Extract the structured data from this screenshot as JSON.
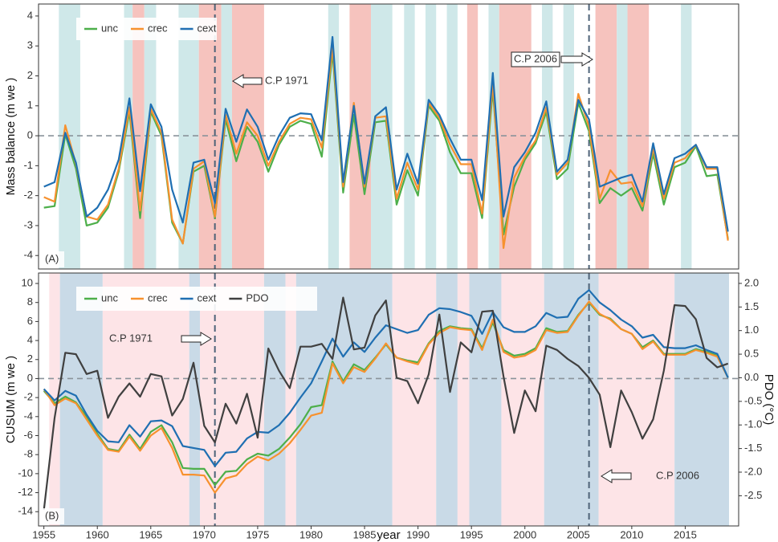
{
  "chart_data": [
    {
      "type": "line",
      "ylabel": "Mass balance (m we )",
      "panel_label": "(A)",
      "legend": "top-left",
      "x": [
        1955,
        1956,
        1957,
        1958,
        1959,
        1960,
        1961,
        1962,
        1963,
        1964,
        1965,
        1966,
        1967,
        1968,
        1969,
        1970,
        1971,
        1972,
        1973,
        1974,
        1975,
        1976,
        1977,
        1978,
        1979,
        1980,
        1981,
        1982,
        1983,
        1984,
        1985,
        1986,
        1987,
        1988,
        1989,
        1990,
        1991,
        1992,
        1993,
        1994,
        1995,
        1996,
        1997,
        1998,
        1999,
        2000,
        2001,
        2002,
        2003,
        2004,
        2005,
        2006,
        2007,
        2008,
        2009,
        2010,
        2011,
        2012,
        2013,
        2014,
        2015,
        2016,
        2017,
        2018,
        2019
      ],
      "xlim": [
        1954.5,
        2020
      ],
      "ylim": [
        -4.45,
        4.4
      ],
      "yticks": [
        -4,
        -3,
        -2,
        -1,
        0,
        1,
        2,
        3,
        4
      ],
      "hline": 0,
      "change_points": [
        1971,
        2006
      ],
      "annotations": [
        "C.P 1971",
        "C.P 2006"
      ],
      "periods": [
        {
          "start": 1956.4,
          "end": 1958.4,
          "color": "#cfe8e9"
        },
        {
          "start": 1962.5,
          "end": 1963.3,
          "color": "#cfe8e9"
        },
        {
          "start": 1963.3,
          "end": 1964.4,
          "color": "#f6c3be"
        },
        {
          "start": 1964.4,
          "end": 1965.5,
          "color": "#cfe8e9"
        },
        {
          "start": 1967.6,
          "end": 1969.5,
          "color": "#cfe8e9"
        },
        {
          "start": 1969.5,
          "end": 1971.6,
          "color": "#f6c3be"
        },
        {
          "start": 1971.6,
          "end": 1972.6,
          "color": "#cfe8e9"
        },
        {
          "start": 1972.6,
          "end": 1975.6,
          "color": "#f6c3be"
        },
        {
          "start": 1981.6,
          "end": 1982.6,
          "color": "#cfe8e9"
        },
        {
          "start": 1983.6,
          "end": 1985.6,
          "color": "#f6c3be"
        },
        {
          "start": 1985.6,
          "end": 1987.6,
          "color": "#cfe8e9"
        },
        {
          "start": 1988.7,
          "end": 1989.7,
          "color": "#cfe8e9"
        },
        {
          "start": 1990.7,
          "end": 1991.7,
          "color": "#cfe8e9"
        },
        {
          "start": 1992.7,
          "end": 1993.7,
          "color": "#cfe8e9"
        },
        {
          "start": 1994.6,
          "end": 1995.6,
          "color": "#f6c3be"
        },
        {
          "start": 1996.6,
          "end": 1997.6,
          "color": "#cfe8e9"
        },
        {
          "start": 1997.6,
          "end": 2000.6,
          "color": "#f6c3be"
        },
        {
          "start": 2001.6,
          "end": 2002.6,
          "color": "#cfe8e9"
        },
        {
          "start": 2003.6,
          "end": 2004.6,
          "color": "#cfe8e9"
        },
        {
          "start": 2006.6,
          "end": 2008.6,
          "color": "#f6c3be"
        },
        {
          "start": 2008.6,
          "end": 2009.6,
          "color": "#cfe8e9"
        },
        {
          "start": 2009.6,
          "end": 2011.6,
          "color": "#f6c3be"
        },
        {
          "start": 2014.6,
          "end": 2015.6,
          "color": "#cfe8e9"
        }
      ],
      "series": [
        {
          "name": "unc",
          "color": "#4daf4a",
          "values": [
            -2.4,
            -2.35,
            0.05,
            -1.1,
            -3.0,
            -2.9,
            -2.4,
            -1.2,
            0.8,
            -2.75,
            0.8,
            0.0,
            -2.9,
            -3.6,
            -1.2,
            -1.0,
            -2.75,
            0.55,
            -0.85,
            0.3,
            -0.2,
            -1.2,
            -0.3,
            0.3,
            0.5,
            0.4,
            -0.7,
            2.8,
            -1.9,
            0.7,
            -1.95,
            0.45,
            0.5,
            -2.3,
            -1.15,
            -2.0,
            1.0,
            0.5,
            -0.55,
            -1.25,
            -1.25,
            -2.75,
            1.55,
            -3.3,
            -1.7,
            -0.8,
            -0.25,
            0.8,
            -1.45,
            -1.1,
            1.1,
            0.15,
            -2.25,
            -1.75,
            -2.0,
            -1.75,
            -2.5,
            -0.6,
            -2.3,
            -1.05,
            -0.9,
            -0.35,
            -1.35,
            -1.3,
            -3.45
          ]
        },
        {
          "name": "crec",
          "color": "#f7912e",
          "values": [
            -2.05,
            -2.2,
            0.35,
            -0.95,
            -2.7,
            -2.8,
            -2.3,
            -1.1,
            0.95,
            -2.5,
            0.9,
            0.1,
            -2.8,
            -3.6,
            -1.1,
            -0.85,
            -2.7,
            0.7,
            -0.6,
            0.45,
            0.0,
            -1.0,
            -0.2,
            0.4,
            0.6,
            0.55,
            -0.4,
            3.0,
            -1.7,
            1.1,
            -1.7,
            0.6,
            0.65,
            -2.1,
            -0.9,
            -1.8,
            1.1,
            0.6,
            -0.3,
            -0.95,
            -0.95,
            -2.6,
            1.8,
            -3.75,
            -1.4,
            -0.7,
            -0.15,
            0.95,
            -1.3,
            -0.9,
            1.4,
            0.3,
            -2.1,
            -1.15,
            -1.6,
            -1.55,
            -2.35,
            -0.4,
            -2.1,
            -0.9,
            -0.75,
            -0.3,
            -1.1,
            -1.1,
            -3.5
          ]
        },
        {
          "name": "cext",
          "color": "#1f6fb2",
          "values": [
            -1.7,
            -1.55,
            0.1,
            -0.9,
            -2.7,
            -2.4,
            -1.8,
            -0.8,
            1.25,
            -1.85,
            1.05,
            0.3,
            -1.8,
            -2.9,
            -0.9,
            -0.8,
            -2.25,
            0.9,
            -0.2,
            0.88,
            0.3,
            -0.8,
            0.0,
            0.6,
            0.75,
            0.72,
            -0.15,
            3.3,
            -1.55,
            1.0,
            -1.6,
            0.65,
            0.95,
            -1.8,
            -0.6,
            -1.6,
            1.2,
            0.7,
            -0.1,
            -0.8,
            -0.8,
            -2.15,
            2.1,
            -2.7,
            -1.05,
            -0.55,
            0.1,
            1.15,
            -1.2,
            -0.8,
            1.2,
            0.55,
            -1.7,
            -1.55,
            -1.4,
            -1.3,
            -2.2,
            -0.25,
            -1.95,
            -0.75,
            -0.6,
            -0.3,
            -1.05,
            -1.05,
            -3.2
          ]
        }
      ]
    },
    {
      "type": "line",
      "ylabel": "CUSUM (m we )",
      "y2label": "PDO (°C)",
      "xlabel": "year",
      "panel_label": "(B)",
      "legend": "top-left",
      "x": [
        1955,
        1956,
        1957,
        1958,
        1959,
        1960,
        1961,
        1962,
        1963,
        1964,
        1965,
        1966,
        1967,
        1968,
        1969,
        1970,
        1971,
        1972,
        1973,
        1974,
        1975,
        1976,
        1977,
        1978,
        1979,
        1980,
        1981,
        1982,
        1983,
        1984,
        1985,
        1986,
        1987,
        1988,
        1989,
        1990,
        1991,
        1992,
        1993,
        1994,
        1995,
        1996,
        1997,
        1998,
        1999,
        2000,
        2001,
        2002,
        2003,
        2004,
        2005,
        2006,
        2007,
        2008,
        2009,
        2010,
        2011,
        2012,
        2013,
        2014,
        2015,
        2016,
        2017,
        2018,
        2019
      ],
      "xlim": [
        1954.5,
        2020
      ],
      "xticks": [
        1955,
        1960,
        1965,
        1970,
        1975,
        1980,
        1985,
        1990,
        1995,
        2000,
        2005,
        2010,
        2015
      ],
      "ylim": [
        -15.5,
        11.1
      ],
      "yticks": [
        -14,
        -12,
        -10,
        -8,
        -6,
        -4,
        -2,
        0,
        2,
        4,
        6,
        8,
        10
      ],
      "y2lim": [
        -3.14,
        2.22
      ],
      "y2ticks": [
        {
          "value": 2,
          "label": "2.0"
        },
        1.5,
        {
          "value": 1,
          "label": "1.0"
        },
        0.5,
        {
          "value": 0,
          "label": "0.0"
        },
        -0.5,
        {
          "value": -1,
          "label": "-1.0"
        },
        -1.5,
        {
          "value": -2,
          "label": "-2.0"
        },
        -2.5
      ],
      "hline": 0,
      "change_points": [
        1971,
        2006
      ],
      "annotations": [
        "C.P 1971",
        "C.P 2006"
      ],
      "periods": [
        {
          "start": 1955.5,
          "end": 1956.5,
          "color": "#fde4e7"
        },
        {
          "start": 1956.5,
          "end": 1960.5,
          "color": "#c9dae7"
        },
        {
          "start": 1960.5,
          "end": 1968.6,
          "color": "#fde4e7"
        },
        {
          "start": 1968.6,
          "end": 1969.6,
          "color": "#c9dae7"
        },
        {
          "start": 1969.6,
          "end": 1975.6,
          "color": "#fde4e7"
        },
        {
          "start": 1975.6,
          "end": 1977.6,
          "color": "#c9dae7"
        },
        {
          "start": 1977.6,
          "end": 1978.6,
          "color": "#fde4e7"
        },
        {
          "start": 1978.6,
          "end": 1987.6,
          "color": "#c9dae7"
        },
        {
          "start": 1987.6,
          "end": 1991.7,
          "color": "#fde4e7"
        },
        {
          "start": 1991.7,
          "end": 1993.7,
          "color": "#c9dae7"
        },
        {
          "start": 1993.7,
          "end": 1994.8,
          "color": "#fde4e7"
        },
        {
          "start": 1994.8,
          "end": 1997.8,
          "color": "#c9dae7"
        },
        {
          "start": 1997.8,
          "end": 2001.8,
          "color": "#fde4e7"
        },
        {
          "start": 2001.8,
          "end": 2006.9,
          "color": "#c9dae7"
        },
        {
          "start": 2006.9,
          "end": 2014.0,
          "color": "#fde4e7"
        },
        {
          "start": 2014.0,
          "end": 2019.1,
          "color": "#c9dae7"
        }
      ],
      "series": [
        {
          "name": "unc",
          "color": "#4daf4a",
          "values": [
            -1.3,
            -2.6,
            -1.9,
            -2.5,
            -4.0,
            -5.8,
            -7.4,
            -7.6,
            -5.9,
            -7.4,
            -5.6,
            -4.9,
            -6.7,
            -9.4,
            -9.5,
            -9.5,
            -11.2,
            -9.8,
            -9.7,
            -8.5,
            -7.9,
            -8.1,
            -7.4,
            -6.2,
            -4.8,
            -3.0,
            -2.8,
            1.8,
            -0.3,
            1.5,
            0.9,
            2.2,
            3.6,
            2.2,
            1.9,
            1.7,
            3.7,
            5.0,
            5.5,
            5.3,
            5.2,
            3.2,
            5.9,
            3.0,
            2.4,
            2.6,
            3.2,
            5.3,
            4.9,
            5.0,
            6.7,
            8.0,
            6.7,
            6.3,
            5.2,
            4.7,
            3.3,
            4.0,
            2.6,
            2.6,
            2.6,
            3.1,
            2.8,
            2.4,
            0.1
          ]
        },
        {
          "name": "crec",
          "color": "#f7912e",
          "values": [
            -1.1,
            -2.8,
            -2.1,
            -2.6,
            -4.3,
            -6.0,
            -7.5,
            -7.7,
            -6.1,
            -7.6,
            -6.0,
            -5.2,
            -7.3,
            -10.1,
            -10.1,
            -10.2,
            -12.0,
            -10.5,
            -10.2,
            -9.0,
            -8.2,
            -8.6,
            -7.9,
            -6.8,
            -5.4,
            -3.9,
            -3.6,
            1.6,
            -0.5,
            1.2,
            0.7,
            2.1,
            3.7,
            2.2,
            1.8,
            1.5,
            3.6,
            4.8,
            5.4,
            5.2,
            5.1,
            3.0,
            6.2,
            2.8,
            2.2,
            2.4,
            3.0,
            5.1,
            4.8,
            4.9,
            6.6,
            8.1,
            6.8,
            6.2,
            5.2,
            4.7,
            3.1,
            3.9,
            2.5,
            2.5,
            2.5,
            3.0,
            2.7,
            2.3,
            0.1
          ]
        },
        {
          "name": "cext",
          "color": "#1f6fb2",
          "values": [
            -1.1,
            -2.3,
            -1.3,
            -1.8,
            -3.8,
            -5.5,
            -6.6,
            -6.7,
            -4.9,
            -6.1,
            -4.5,
            -4.4,
            -5.0,
            -7.1,
            -7.3,
            -7.5,
            -9.2,
            -7.8,
            -7.7,
            -6.3,
            -5.6,
            -5.7,
            -4.9,
            -3.6,
            -2.0,
            -0.5,
            1.8,
            4.2,
            2.3,
            3.8,
            2.8,
            4.3,
            5.6,
            5.2,
            4.8,
            5.1,
            6.7,
            7.4,
            7.3,
            7.0,
            6.6,
            4.7,
            7.0,
            5.4,
            4.9,
            4.9,
            5.5,
            6.9,
            6.4,
            6.5,
            8.4,
            9.3,
            8.0,
            7.2,
            6.2,
            5.5,
            4.3,
            4.6,
            3.3,
            3.2,
            3.2,
            3.5,
            3.0,
            2.6,
            0.1
          ]
        },
        {
          "name": "PDO",
          "color": "#404040",
          "axis": "y2",
          "values": [
            -2.8,
            -0.85,
            0.53,
            0.5,
            0.08,
            0.15,
            -0.85,
            -0.4,
            -0.12,
            -0.4,
            0.08,
            0.03,
            -0.8,
            -0.45,
            0.32,
            -1.02,
            -1.37,
            -0.55,
            -0.97,
            -0.34,
            -1.27,
            0.62,
            0.15,
            -0.22,
            0.66,
            0.66,
            0.72,
            0.4,
            1.7,
            0.6,
            0.64,
            1.32,
            1.64,
            0.0,
            -0.07,
            -0.54,
            0.07,
            1.34,
            -0.3,
            0.75,
            0.54,
            1.4,
            1.42,
            0.03,
            -1.17,
            -0.27,
            -0.71,
            0.68,
            0.59,
            0.4,
            0.25,
            0.0,
            -0.36,
            -1.47,
            -0.27,
            -0.73,
            -1.29,
            -0.88,
            0.15,
            1.54,
            1.52,
            1.24,
            0.42,
            0.22,
            0.3
          ]
        }
      ]
    }
  ]
}
